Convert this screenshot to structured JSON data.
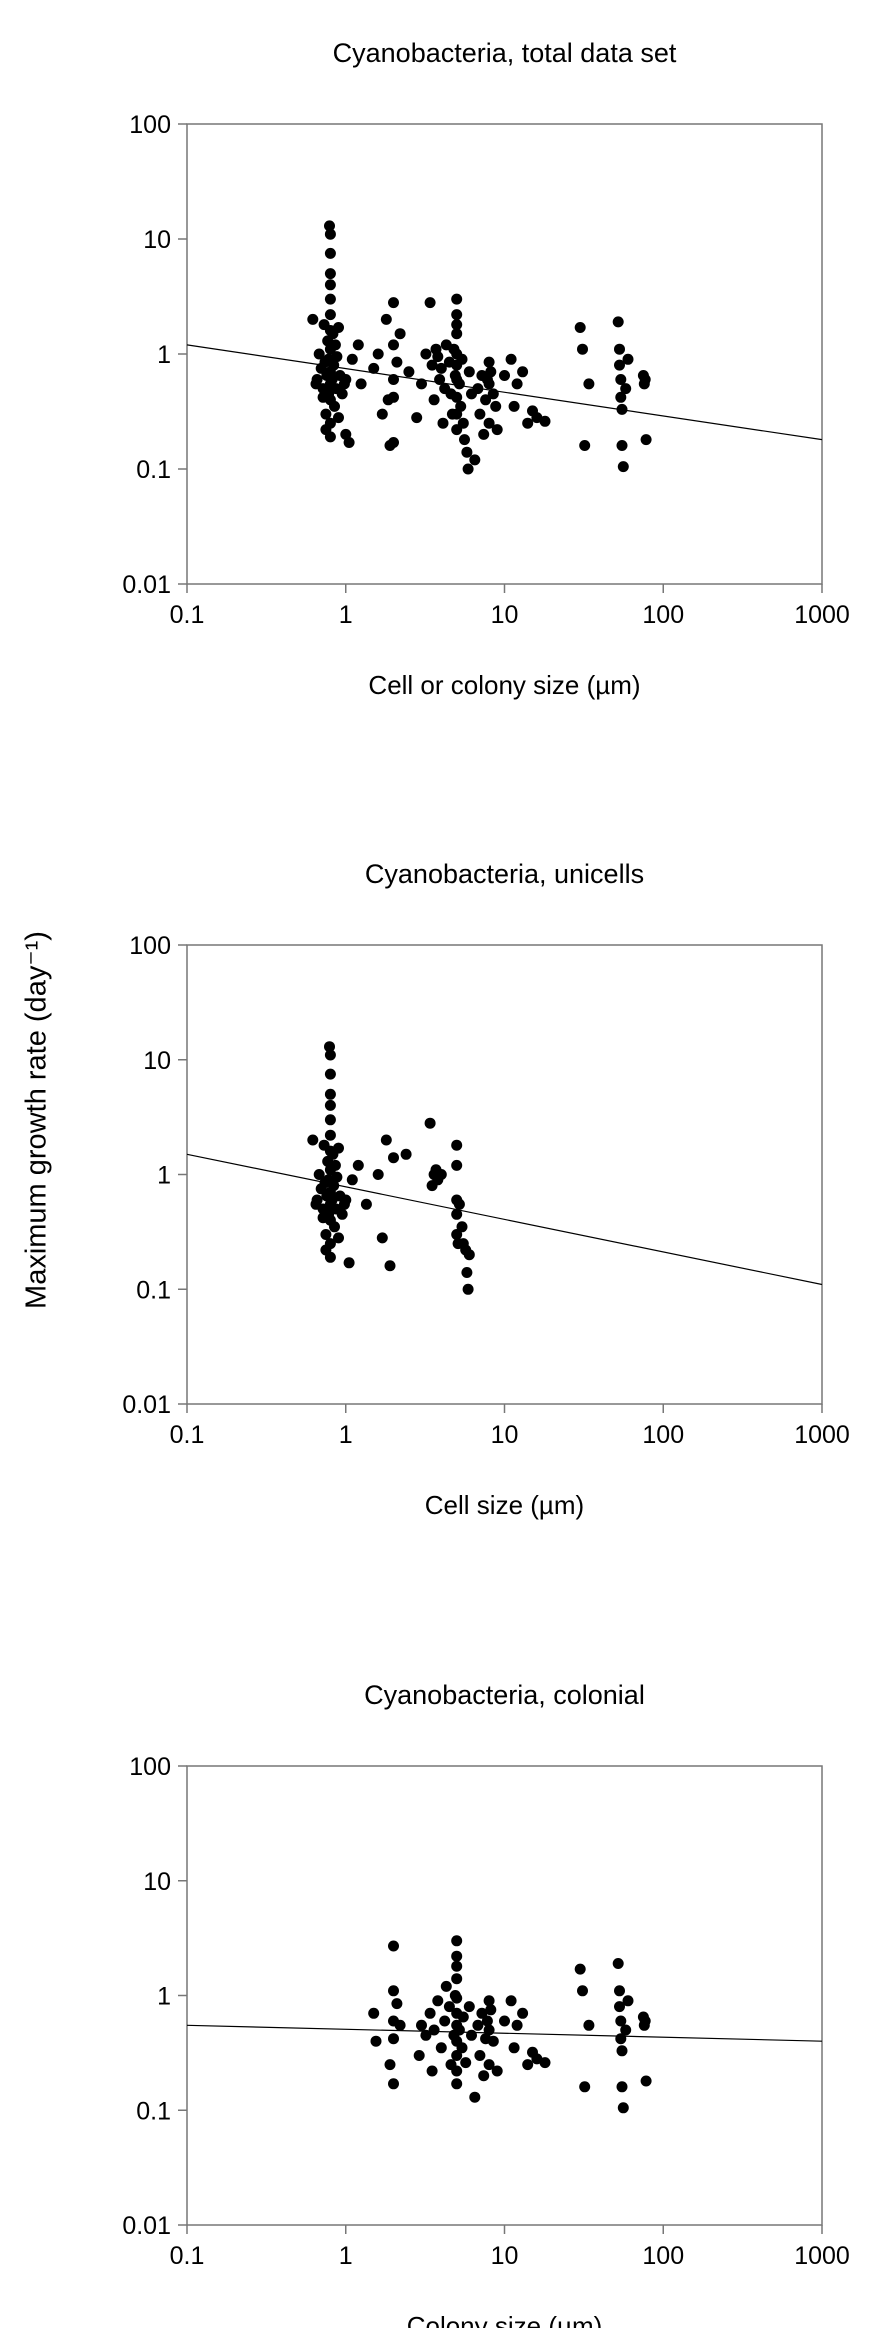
{
  "shared_ylabel": "Maximum growth rate (day⁻¹)",
  "chart_data": [
    {
      "type": "scatter",
      "title": "Cyanobacteria, total data set",
      "xlabel": "Cell or colony size (µm)",
      "ylabel": "",
      "xscale": "log",
      "yscale": "log",
      "xlim": [
        0.1,
        1000
      ],
      "ylim": [
        0.01,
        100
      ],
      "xticks": [
        "0.1",
        "1",
        "10",
        "100",
        "1000"
      ],
      "yticks": [
        "0.01",
        "0.1",
        "1",
        "10",
        "100"
      ],
      "grid": false,
      "trendline": {
        "x": [
          0.1,
          1000
        ],
        "y": [
          1.2,
          0.18
        ]
      },
      "points": [
        [
          0.65,
          0.55
        ],
        [
          0.62,
          2.0
        ],
        [
          0.66,
          0.6
        ],
        [
          0.68,
          1.0
        ],
        [
          0.7,
          0.75
        ],
        [
          0.72,
          0.5
        ],
        [
          0.72,
          0.42
        ],
        [
          0.73,
          1.8
        ],
        [
          0.74,
          0.85
        ],
        [
          0.75,
          0.3
        ],
        [
          0.75,
          0.22
        ],
        [
          0.76,
          0.65
        ],
        [
          0.77,
          1.3
        ],
        [
          0.78,
          0.45
        ],
        [
          0.78,
          0.9
        ],
        [
          0.79,
          13.0
        ],
        [
          0.8,
          11.0
        ],
        [
          0.8,
          7.5
        ],
        [
          0.8,
          5.0
        ],
        [
          0.8,
          4.0
        ],
        [
          0.8,
          3.0
        ],
        [
          0.8,
          2.2
        ],
        [
          0.8,
          1.6
        ],
        [
          0.8,
          1.1
        ],
        [
          0.8,
          0.7
        ],
        [
          0.8,
          0.55
        ],
        [
          0.8,
          0.4
        ],
        [
          0.8,
          0.25
        ],
        [
          0.8,
          0.19
        ],
        [
          0.82,
          0.6
        ],
        [
          0.83,
          1.5
        ],
        [
          0.84,
          0.8
        ],
        [
          0.85,
          0.35
        ],
        [
          0.86,
          1.2
        ],
        [
          0.87,
          0.5
        ],
        [
          0.88,
          0.95
        ],
        [
          0.9,
          0.28
        ],
        [
          0.9,
          1.7
        ],
        [
          0.92,
          0.65
        ],
        [
          0.95,
          0.45
        ],
        [
          0.98,
          0.55
        ],
        [
          1.0,
          0.6
        ],
        [
          1.0,
          0.2
        ],
        [
          1.05,
          0.17
        ],
        [
          1.1,
          0.9
        ],
        [
          1.2,
          1.2
        ],
        [
          1.25,
          0.55
        ],
        [
          1.5,
          0.75
        ],
        [
          1.6,
          1.0
        ],
        [
          1.7,
          0.3
        ],
        [
          1.8,
          2.0
        ],
        [
          1.85,
          0.4
        ],
        [
          1.9,
          0.16
        ],
        [
          2.0,
          2.8
        ],
        [
          2.0,
          1.2
        ],
        [
          2.0,
          0.6
        ],
        [
          2.0,
          0.42
        ],
        [
          2.0,
          0.17
        ],
        [
          2.1,
          0.85
        ],
        [
          2.2,
          1.5
        ],
        [
          2.5,
          0.7
        ],
        [
          2.8,
          0.28
        ],
        [
          3.0,
          0.55
        ],
        [
          3.2,
          1.0
        ],
        [
          3.4,
          2.8
        ],
        [
          3.5,
          0.8
        ],
        [
          3.6,
          0.4
        ],
        [
          3.7,
          1.1
        ],
        [
          3.8,
          0.95
        ],
        [
          3.9,
          0.6
        ],
        [
          4.0,
          0.75
        ],
        [
          4.1,
          0.25
        ],
        [
          4.2,
          0.5
        ],
        [
          4.3,
          1.2
        ],
        [
          4.5,
          0.85
        ],
        [
          4.6,
          0.45
        ],
        [
          4.7,
          0.3
        ],
        [
          4.8,
          1.1
        ],
        [
          4.9,
          0.65
        ],
        [
          5.0,
          3.0
        ],
        [
          5.0,
          2.2
        ],
        [
          5.0,
          1.8
        ],
        [
          5.0,
          1.5
        ],
        [
          5.0,
          1.0
        ],
        [
          5.0,
          0.8
        ],
        [
          5.0,
          0.6
        ],
        [
          5.0,
          0.42
        ],
        [
          5.0,
          0.3
        ],
        [
          5.0,
          0.22
        ],
        [
          5.2,
          0.55
        ],
        [
          5.3,
          0.35
        ],
        [
          5.4,
          0.9
        ],
        [
          5.5,
          0.25
        ],
        [
          5.6,
          0.18
        ],
        [
          5.8,
          0.14
        ],
        [
          5.9,
          0.1
        ],
        [
          6.0,
          0.7
        ],
        [
          6.2,
          0.45
        ],
        [
          6.5,
          0.12
        ],
        [
          6.8,
          0.5
        ],
        [
          7.0,
          0.3
        ],
        [
          7.2,
          0.65
        ],
        [
          7.4,
          0.2
        ],
        [
          7.6,
          0.4
        ],
        [
          7.8,
          0.6
        ],
        [
          8.0,
          0.85
        ],
        [
          8.0,
          0.55
        ],
        [
          8.0,
          0.25
        ],
        [
          8.2,
          0.7
        ],
        [
          8.5,
          0.45
        ],
        [
          8.8,
          0.35
        ],
        [
          9.0,
          0.22
        ],
        [
          10.0,
          0.65
        ],
        [
          11.0,
          0.9
        ],
        [
          11.5,
          0.35
        ],
        [
          12.0,
          0.55
        ],
        [
          13.0,
          0.7
        ],
        [
          14.0,
          0.25
        ],
        [
          15.0,
          0.32
        ],
        [
          16.0,
          0.28
        ],
        [
          18.0,
          0.26
        ],
        [
          30.0,
          1.7
        ],
        [
          31.0,
          1.1
        ],
        [
          32.0,
          0.16
        ],
        [
          34.0,
          0.55
        ],
        [
          52.0,
          1.9
        ],
        [
          53.0,
          1.1
        ],
        [
          53.0,
          0.8
        ],
        [
          54.0,
          0.6
        ],
        [
          54.0,
          0.42
        ],
        [
          55.0,
          0.33
        ],
        [
          55.0,
          0.16
        ],
        [
          56.0,
          0.105
        ],
        [
          58.0,
          0.5
        ],
        [
          60.0,
          0.9
        ],
        [
          75.0,
          0.65
        ],
        [
          76.0,
          0.55
        ],
        [
          77.0,
          0.6
        ],
        [
          78.0,
          0.18
        ]
      ]
    },
    {
      "type": "scatter",
      "title": "Cyanobacteria, unicells",
      "xlabel": "Cell size (µm)",
      "ylabel": "",
      "xscale": "log",
      "yscale": "log",
      "xlim": [
        0.1,
        1000
      ],
      "ylim": [
        0.01,
        100
      ],
      "xticks": [
        "0.1",
        "1",
        "10",
        "100",
        "1000"
      ],
      "yticks": [
        "0.01",
        "0.1",
        "1",
        "10",
        "100"
      ],
      "grid": false,
      "trendline": {
        "x": [
          0.1,
          1000
        ],
        "y": [
          1.5,
          0.11
        ]
      },
      "points": [
        [
          0.65,
          0.55
        ],
        [
          0.62,
          2.0
        ],
        [
          0.66,
          0.6
        ],
        [
          0.68,
          1.0
        ],
        [
          0.7,
          0.75
        ],
        [
          0.72,
          0.5
        ],
        [
          0.72,
          0.42
        ],
        [
          0.73,
          1.8
        ],
        [
          0.74,
          0.85
        ],
        [
          0.75,
          0.3
        ],
        [
          0.75,
          0.22
        ],
        [
          0.76,
          0.65
        ],
        [
          0.77,
          1.3
        ],
        [
          0.78,
          0.45
        ],
        [
          0.78,
          0.9
        ],
        [
          0.79,
          13.0
        ],
        [
          0.8,
          11.0
        ],
        [
          0.8,
          7.5
        ],
        [
          0.8,
          5.0
        ],
        [
          0.8,
          4.0
        ],
        [
          0.8,
          3.0
        ],
        [
          0.8,
          2.2
        ],
        [
          0.8,
          1.6
        ],
        [
          0.8,
          1.1
        ],
        [
          0.8,
          0.7
        ],
        [
          0.8,
          0.55
        ],
        [
          0.8,
          0.4
        ],
        [
          0.8,
          0.25
        ],
        [
          0.8,
          0.19
        ],
        [
          0.82,
          0.6
        ],
        [
          0.83,
          1.5
        ],
        [
          0.84,
          0.8
        ],
        [
          0.85,
          0.35
        ],
        [
          0.86,
          1.2
        ],
        [
          0.87,
          0.5
        ],
        [
          0.88,
          0.95
        ],
        [
          0.9,
          0.28
        ],
        [
          0.9,
          1.7
        ],
        [
          0.92,
          0.65
        ],
        [
          0.95,
          0.45
        ],
        [
          0.98,
          0.55
        ],
        [
          1.0,
          0.6
        ],
        [
          1.05,
          0.17
        ],
        [
          1.1,
          0.9
        ],
        [
          1.2,
          1.2
        ],
        [
          1.35,
          0.55
        ],
        [
          1.6,
          1.0
        ],
        [
          1.7,
          0.28
        ],
        [
          1.8,
          2.0
        ],
        [
          1.9,
          0.16
        ],
        [
          2.0,
          1.4
        ],
        [
          2.4,
          1.5
        ],
        [
          3.4,
          2.8
        ],
        [
          3.5,
          0.8
        ],
        [
          3.6,
          1.0
        ],
        [
          3.7,
          1.1
        ],
        [
          3.8,
          0.9
        ],
        [
          4.0,
          1.0
        ],
        [
          5.0,
          1.8
        ],
        [
          5.0,
          1.2
        ],
        [
          5.0,
          0.6
        ],
        [
          5.0,
          0.45
        ],
        [
          5.0,
          0.3
        ],
        [
          5.1,
          0.25
        ],
        [
          5.2,
          0.55
        ],
        [
          5.4,
          0.35
        ],
        [
          5.5,
          0.25
        ],
        [
          5.7,
          0.22
        ],
        [
          5.8,
          0.14
        ],
        [
          5.9,
          0.1
        ],
        [
          6.0,
          0.2
        ]
      ]
    },
    {
      "type": "scatter",
      "title": "Cyanobacteria, colonial",
      "xlabel": "Colony size (µm)",
      "ylabel": "",
      "xscale": "log",
      "yscale": "log",
      "xlim": [
        0.1,
        1000
      ],
      "ylim": [
        0.01,
        100
      ],
      "xticks": [
        "0.1",
        "1",
        "10",
        "100",
        "1000"
      ],
      "yticks": [
        "0.01",
        "0.1",
        "1",
        "10",
        "100"
      ],
      "grid": false,
      "trendline": {
        "x": [
          0.1,
          1000
        ],
        "y": [
          0.55,
          0.4
        ]
      },
      "points": [
        [
          1.5,
          0.7
        ],
        [
          1.55,
          0.4
        ],
        [
          1.9,
          0.25
        ],
        [
          2.0,
          2.7
        ],
        [
          2.0,
          1.1
        ],
        [
          2.0,
          0.6
        ],
        [
          2.0,
          0.42
        ],
        [
          2.0,
          0.17
        ],
        [
          2.1,
          0.85
        ],
        [
          2.2,
          0.55
        ],
        [
          2.9,
          0.3
        ],
        [
          3.0,
          0.55
        ],
        [
          3.2,
          0.45
        ],
        [
          3.4,
          0.7
        ],
        [
          3.5,
          0.22
        ],
        [
          3.6,
          0.5
        ],
        [
          3.8,
          0.9
        ],
        [
          4.0,
          0.35
        ],
        [
          4.2,
          0.6
        ],
        [
          4.3,
          1.2
        ],
        [
          4.5,
          0.8
        ],
        [
          4.6,
          0.25
        ],
        [
          4.8,
          0.45
        ],
        [
          4.9,
          1.0
        ],
        [
          5.0,
          3.0
        ],
        [
          5.0,
          2.2
        ],
        [
          5.0,
          1.8
        ],
        [
          5.0,
          1.4
        ],
        [
          5.0,
          0.95
        ],
        [
          5.0,
          0.7
        ],
        [
          5.0,
          0.55
        ],
        [
          5.0,
          0.4
        ],
        [
          5.0,
          0.3
        ],
        [
          5.0,
          0.22
        ],
        [
          5.0,
          0.17
        ],
        [
          5.2,
          0.5
        ],
        [
          5.4,
          0.35
        ],
        [
          5.5,
          0.65
        ],
        [
          5.7,
          0.26
        ],
        [
          6.0,
          0.8
        ],
        [
          6.2,
          0.45
        ],
        [
          6.5,
          0.13
        ],
        [
          6.8,
          0.55
        ],
        [
          7.0,
          0.3
        ],
        [
          7.2,
          0.7
        ],
        [
          7.4,
          0.2
        ],
        [
          7.6,
          0.42
        ],
        [
          7.8,
          0.6
        ],
        [
          8.0,
          0.9
        ],
        [
          8.0,
          0.5
        ],
        [
          8.0,
          0.25
        ],
        [
          8.2,
          0.75
        ],
        [
          8.5,
          0.4
        ],
        [
          9.0,
          0.22
        ],
        [
          10.0,
          0.6
        ],
        [
          11.0,
          0.9
        ],
        [
          11.5,
          0.35
        ],
        [
          12.0,
          0.55
        ],
        [
          13.0,
          0.7
        ],
        [
          14.0,
          0.25
        ],
        [
          15.0,
          0.32
        ],
        [
          16.0,
          0.28
        ],
        [
          18.0,
          0.26
        ],
        [
          30.0,
          1.7
        ],
        [
          31.0,
          1.1
        ],
        [
          32.0,
          0.16
        ],
        [
          34.0,
          0.55
        ],
        [
          52.0,
          1.9
        ],
        [
          53.0,
          1.1
        ],
        [
          53.0,
          0.8
        ],
        [
          54.0,
          0.6
        ],
        [
          54.0,
          0.42
        ],
        [
          55.0,
          0.33
        ],
        [
          55.0,
          0.16
        ],
        [
          56.0,
          0.105
        ],
        [
          58.0,
          0.5
        ],
        [
          60.0,
          0.9
        ],
        [
          75.0,
          0.65
        ],
        [
          76.0,
          0.55
        ],
        [
          77.0,
          0.6
        ],
        [
          78.0,
          0.18
        ]
      ]
    }
  ]
}
